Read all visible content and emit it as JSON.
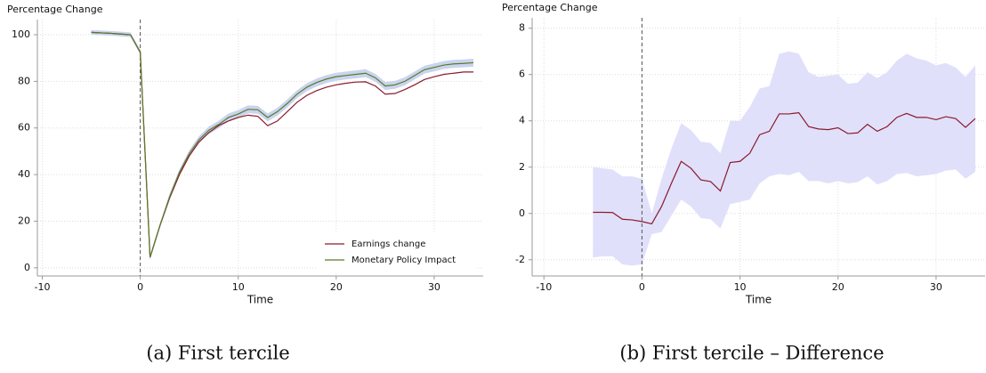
{
  "chart_data": [
    {
      "type": "line",
      "ylabel": "Percentage Change",
      "xlabel": "Time",
      "caption": "(a) First tercile",
      "x": [
        -5,
        -4,
        -3,
        -2,
        -1,
        0,
        1,
        2,
        3,
        4,
        5,
        6,
        7,
        8,
        9,
        10,
        11,
        12,
        13,
        14,
        15,
        16,
        17,
        18,
        19,
        20,
        21,
        22,
        23,
        24,
        25,
        26,
        27,
        28,
        29,
        30,
        31,
        32,
        33,
        34
      ],
      "series": [
        {
          "name": "Earnings change",
          "color": "#8b1a2b",
          "values": [
            101,
            100.8,
            100.6,
            100.3,
            100,
            92.5,
            4.5,
            18,
            30,
            40,
            48,
            54,
            58,
            61,
            63,
            64.5,
            65.5,
            65,
            61,
            63,
            67,
            71,
            74,
            76,
            77.5,
            78.5,
            79.2,
            79.7,
            79.8,
            78,
            74.5,
            74.8,
            76.5,
            78.5,
            80.8,
            82,
            83,
            83.5,
            84,
            84
          ]
        },
        {
          "name": "Monetary Policy Impact",
          "color": "#5a7a2a",
          "values": [
            101,
            100.8,
            100.6,
            100.3,
            100,
            92.5,
            4.5,
            18,
            30.5,
            41,
            49,
            55,
            59,
            61.5,
            64.5,
            66,
            68,
            67.8,
            64.5,
            67,
            70.5,
            74.5,
            77.5,
            79.5,
            81,
            82,
            82.5,
            83,
            83.5,
            81.5,
            78,
            78.5,
            80,
            82.5,
            85,
            86,
            87,
            87.5,
            87.7,
            88
          ],
          "band": {
            "color": "#c9d4ee",
            "lower": [
              100,
              99.8,
              99.6,
              99.3,
              99,
              91.5,
              3.5,
              17,
              29.2,
              39.8,
              47.6,
              53.5,
              57.4,
              59.9,
              62.8,
              64.3,
              66.3,
              66.1,
              62.8,
              65.3,
              68.8,
              72.8,
              75.8,
              77.8,
              79.3,
              80.3,
              80.8,
              81.3,
              81.8,
              79.8,
              76.3,
              76.8,
              78.3,
              80.8,
              83.3,
              84.3,
              85.3,
              85.8,
              86,
              86.3
            ],
            "upper": [
              102,
              101.8,
              101.6,
              101.3,
              101,
              93.5,
              5.5,
              19,
              31.8,
              42.2,
              50.4,
              56.5,
              60.6,
              63.1,
              66.2,
              67.7,
              69.7,
              69.5,
              66.2,
              68.7,
              72.2,
              76.2,
              79.2,
              81.2,
              82.7,
              83.7,
              84.2,
              84.7,
              85.2,
              83.2,
              79.7,
              80.2,
              81.7,
              84.2,
              86.7,
              87.7,
              88.7,
              89.2,
              89.4,
              89.7
            ]
          }
        }
      ],
      "xlim": [
        -10.5,
        35
      ],
      "ylim": [
        -3.5,
        106.5
      ],
      "xticks": [
        -10,
        0,
        10,
        20,
        30
      ],
      "yticks": [
        0,
        20,
        40,
        60,
        80,
        100
      ],
      "grid": true,
      "vline": 0,
      "legend": "lower right"
    },
    {
      "type": "line",
      "ylabel": "Percentage Change",
      "xlabel": "Time",
      "caption": "(b) First tercile – Difference",
      "x": [
        -5,
        -4,
        -3,
        -2,
        -1,
        0,
        1,
        2,
        3,
        4,
        5,
        6,
        7,
        8,
        9,
        10,
        11,
        12,
        13,
        14,
        15,
        16,
        17,
        18,
        19,
        20,
        21,
        22,
        23,
        24,
        25,
        26,
        27,
        28,
        29,
        30,
        31,
        32,
        33,
        34
      ],
      "series": [
        {
          "color": "#8b1a2b",
          "values": [
            0.05,
            0.05,
            0.04,
            -0.25,
            -0.28,
            -0.35,
            -0.45,
            0.3,
            1.3,
            2.25,
            1.95,
            1.45,
            1.38,
            0.97,
            2.2,
            2.25,
            2.6,
            3.4,
            3.55,
            4.3,
            4.3,
            4.35,
            3.75,
            3.65,
            3.62,
            3.7,
            3.45,
            3.48,
            3.85,
            3.55,
            3.75,
            4.15,
            4.32,
            4.15,
            4.15,
            4.05,
            4.18,
            4.1,
            3.72,
            4.1
          ],
          "band": {
            "color": "#e0e0fb",
            "lower": [
              -1.9,
              -1.85,
              -1.85,
              -2.2,
              -2.25,
              -2.2,
              -0.9,
              -0.8,
              -0.1,
              0.6,
              0.3,
              -0.2,
              -0.25,
              -0.65,
              0.4,
              0.5,
              0.6,
              1.3,
              1.6,
              1.7,
              1.65,
              1.8,
              1.4,
              1.4,
              1.3,
              1.4,
              1.3,
              1.35,
              1.6,
              1.25,
              1.4,
              1.7,
              1.75,
              1.6,
              1.65,
              1.7,
              1.85,
              1.9,
              1.5,
              1.8
            ],
            "upper": [
              2,
              1.95,
              1.9,
              1.6,
              1.6,
              1.5,
              0,
              1.5,
              2.8,
              3.9,
              3.6,
              3.1,
              3.05,
              2.6,
              4,
              4,
              4.6,
              5.4,
              5.5,
              6.9,
              7,
              6.9,
              6.1,
              5.9,
              5.95,
              6,
              5.6,
              5.65,
              6.1,
              5.85,
              6.1,
              6.6,
              6.9,
              6.7,
              6.6,
              6.4,
              6.5,
              6.3,
              5.9,
              6.4
            ]
          }
        }
      ],
      "xlim": [
        -11.2,
        35
      ],
      "ylim": [
        -2.7,
        8.45
      ],
      "xticks": [
        -10,
        0,
        10,
        20,
        30
      ],
      "yticks": [
        -2,
        0,
        2,
        4,
        6,
        8
      ],
      "grid": true,
      "vline": 0
    }
  ]
}
